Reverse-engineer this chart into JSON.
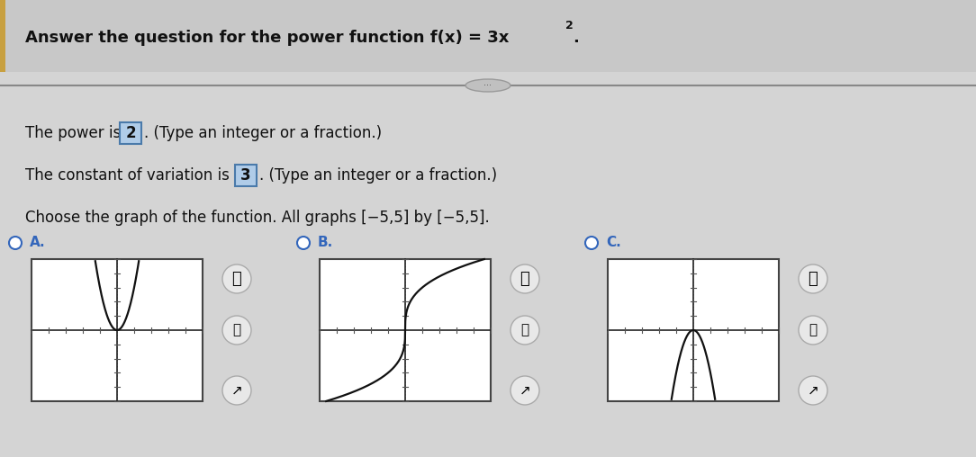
{
  "title_main": "Answer the question for the power function f(x) = 3x",
  "title_sup": "2",
  "title_end": ".",
  "line1_pre": "The power is",
  "line1_val": "2",
  "line1_post": ". (Type an integer or a fraction.)",
  "line2_pre": "The constant of variation is",
  "line2_val": "3",
  "line2_post": ". (Type an integer or a fraction.)",
  "line3": "Choose the graph of the function. All graphs [−5,5] by [−5,5].",
  "graph_labels": [
    "A.",
    "B.",
    "C."
  ],
  "graph_funcs": [
    "parabola_up",
    "cube_root",
    "parabola_down"
  ],
  "selected_radio": 1,
  "xlim": [
    -5,
    5
  ],
  "ylim": [
    -5,
    5
  ],
  "bg_top": "#c8c8c8",
  "bg_main": "#d4d4d4",
  "graph_bg": "#ffffff",
  "graph_border": "#444444",
  "axis_color": "#222222",
  "curve_color": "#111111",
  "tick_color": "#555555",
  "highlight_bg": "#b0cce8",
  "highlight_border": "#4a7aaa",
  "radio_blue": "#3366bb",
  "divider_color": "#888888",
  "icon_bg": "#e8e8e8",
  "icon_border": "#aaaaaa",
  "text_color": "#111111",
  "left_bar_color": "#c8a040"
}
